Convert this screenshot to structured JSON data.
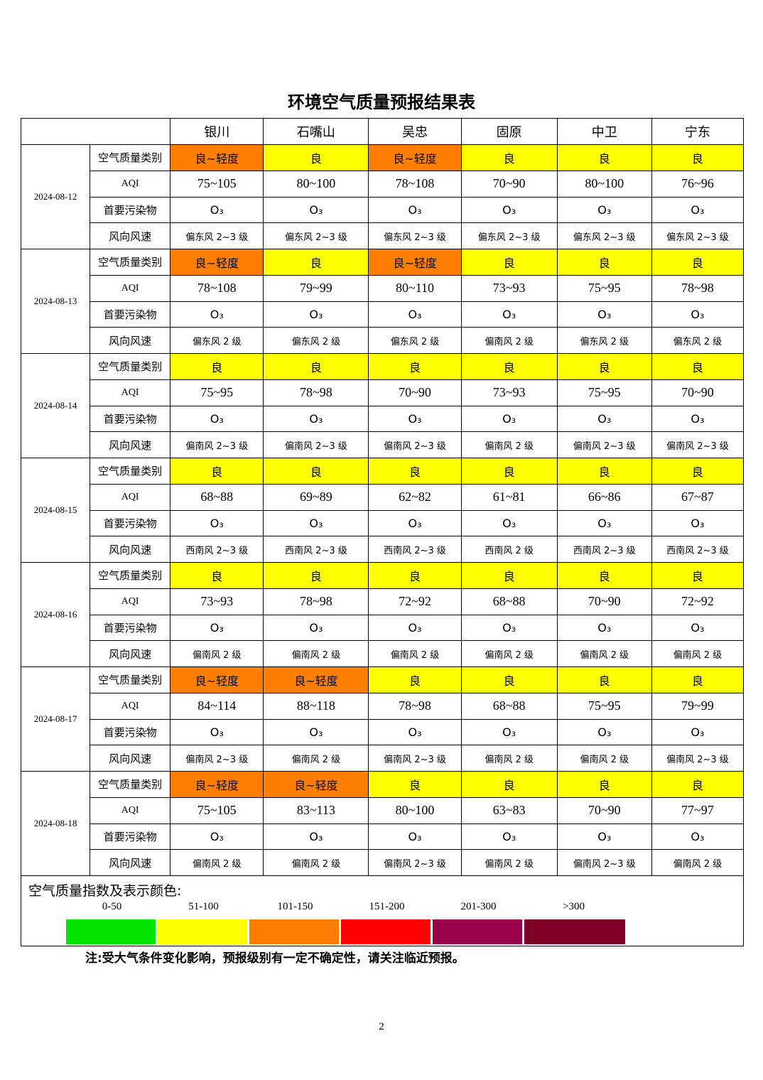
{
  "title": "环境空气质量预报结果表",
  "cities": [
    "银川",
    "石嘴山",
    "吴忠",
    "固原",
    "中卫",
    "宁东"
  ],
  "row_labels": {
    "category": "空气质量类别",
    "aqi": "AQI",
    "pollutant": "首要污染物",
    "wind": "风向风速"
  },
  "colors": {
    "良": "#ffff00",
    "良~轻度": "#ff8000"
  },
  "days": [
    {
      "date": "2024-08-12",
      "category": [
        "良~轻度",
        "良",
        "良~轻度",
        "良",
        "良",
        "良"
      ],
      "aqi": [
        "75~105",
        "80~100",
        "78~108",
        "70~90",
        "80~100",
        "76~96"
      ],
      "pollutant": [
        "O₃",
        "O₃",
        "O₃",
        "O₃",
        "O₃",
        "O₃"
      ],
      "wind": [
        "偏东风 2~3 级",
        "偏东风 2~3 级",
        "偏东风 2~3 级",
        "偏东风 2~3 级",
        "偏东风 2~3 级",
        "偏东风 2~3 级"
      ]
    },
    {
      "date": "2024-08-13",
      "category": [
        "良~轻度",
        "良",
        "良~轻度",
        "良",
        "良",
        "良"
      ],
      "aqi": [
        "78~108",
        "79~99",
        "80~110",
        "73~93",
        "75~95",
        "78~98"
      ],
      "pollutant": [
        "O₃",
        "O₃",
        "O₃",
        "O₃",
        "O₃",
        "O₃"
      ],
      "wind": [
        "偏东风 2 级",
        "偏东风 2 级",
        "偏东风 2 级",
        "偏南风 2 级",
        "偏东风 2 级",
        "偏东风 2 级"
      ]
    },
    {
      "date": "2024-08-14",
      "category": [
        "良",
        "良",
        "良",
        "良",
        "良",
        "良"
      ],
      "aqi": [
        "75~95",
        "78~98",
        "70~90",
        "73~93",
        "75~95",
        "70~90"
      ],
      "pollutant": [
        "O₃",
        "O₃",
        "O₃",
        "O₃",
        "O₃",
        "O₃"
      ],
      "wind": [
        "偏南风 2~3 级",
        "偏南风 2~3 级",
        "偏南风 2~3 级",
        "偏南风 2 级",
        "偏南风 2~3 级",
        "偏南风 2~3 级"
      ]
    },
    {
      "date": "2024-08-15",
      "category": [
        "良",
        "良",
        "良",
        "良",
        "良",
        "良"
      ],
      "aqi": [
        "68~88",
        "69~89",
        "62~82",
        "61~81",
        "66~86",
        "67~87"
      ],
      "pollutant": [
        "O₃",
        "O₃",
        "O₃",
        "O₃",
        "O₃",
        "O₃"
      ],
      "wind": [
        "西南风 2~3 级",
        "西南风 2~3 级",
        "西南风 2~3 级",
        "西南风 2 级",
        "西南风 2~3 级",
        "西南风 2~3 级"
      ]
    },
    {
      "date": "2024-08-16",
      "category": [
        "良",
        "良",
        "良",
        "良",
        "良",
        "良"
      ],
      "aqi": [
        "73~93",
        "78~98",
        "72~92",
        "68~88",
        "70~90",
        "72~92"
      ],
      "pollutant": [
        "O₃",
        "O₃",
        "O₃",
        "O₃",
        "O₃",
        "O₃"
      ],
      "wind": [
        "偏南风 2 级",
        "偏南风 2 级",
        "偏南风 2 级",
        "偏南风 2 级",
        "偏南风 2 级",
        "偏南风 2 级"
      ]
    },
    {
      "date": "2024-08-17",
      "category": [
        "良~轻度",
        "良~轻度",
        "良",
        "良",
        "良",
        "良"
      ],
      "aqi": [
        "84~114",
        "88~118",
        "78~98",
        "68~88",
        "75~95",
        "79~99"
      ],
      "pollutant": [
        "O₃",
        "O₃",
        "O₃",
        "O₃",
        "O₃",
        "O₃"
      ],
      "wind": [
        "偏南风 2~3 级",
        "偏南风 2 级",
        "偏南风 2~3 级",
        "偏南风 2 级",
        "偏南风 2 级",
        "偏南风 2~3 级"
      ]
    },
    {
      "date": "2024-08-18",
      "category": [
        "良~轻度",
        "良~轻度",
        "良",
        "良",
        "良",
        "良"
      ],
      "aqi": [
        "75~105",
        "83~113",
        "80~100",
        "63~83",
        "70~90",
        "77~97"
      ],
      "pollutant": [
        "O₃",
        "O₃",
        "O₃",
        "O₃",
        "O₃",
        "O₃"
      ],
      "wind": [
        "偏南风 2 级",
        "偏南风 2 级",
        "偏南风 2~3 级",
        "偏南风 2 级",
        "偏南风 2~3 级",
        "偏南风 2 级"
      ]
    }
  ],
  "legend": {
    "title": "空气质量指数及表示颜色:",
    "items": [
      {
        "range": "0-50",
        "color": "#00e400"
      },
      {
        "range": "51-100",
        "color": "#ffff00"
      },
      {
        "range": "101-150",
        "color": "#ff7e00"
      },
      {
        "range": "151-200",
        "color": "#ff0000"
      },
      {
        "range": "201-300",
        "color": "#99004c"
      },
      {
        "range": ">300",
        "color": "#7e0023"
      }
    ]
  },
  "note": "注:受大气条件变化影响，预报级别有一定不确定性，请关注临近预报。",
  "page_number": "2"
}
